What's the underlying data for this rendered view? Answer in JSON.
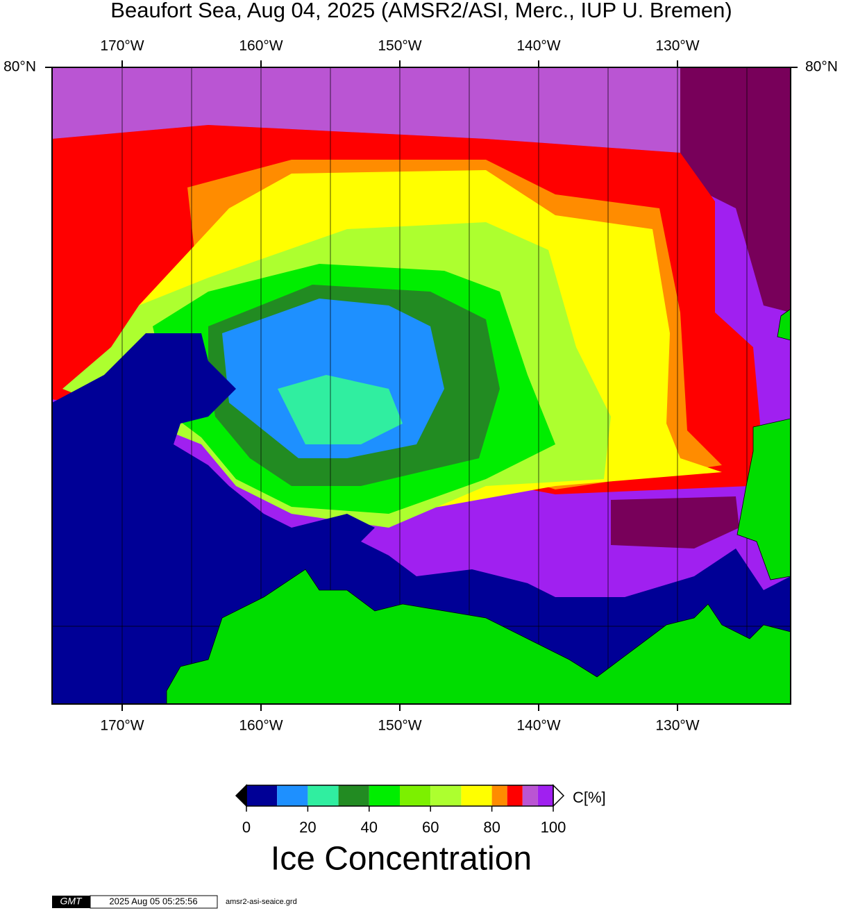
{
  "title": "Beaufort Sea, Aug 04, 2025 (AMSR2/ASI, Merc., IUP U. Bremen)",
  "map": {
    "lonlim": [
      -175.05,
      -121.85
    ],
    "latlim": [
      68,
      80
    ],
    "lon_ticks": [
      {
        "value": -170,
        "label": "170°W"
      },
      {
        "value": -160,
        "label": "160°W"
      },
      {
        "value": -150,
        "label": "150°W"
      },
      {
        "value": -140,
        "label": "140°W"
      },
      {
        "value": -130,
        "label": "130°W"
      }
    ],
    "lat_ticks": [
      {
        "value": 80,
        "label": "80°N"
      }
    ],
    "meridians": [
      -170,
      -165,
      -160,
      -155,
      -150,
      -145,
      -140,
      -135,
      -130,
      -125
    ],
    "parallels": [
      70
    ],
    "ocean_color": "#000096",
    "land_color": "#00dd00"
  },
  "colorbar": {
    "bounds": [
      0,
      10,
      20,
      30,
      40,
      50,
      60,
      70,
      80,
      85,
      90,
      95,
      100
    ],
    "colors": [
      "#000096",
      "#1e90ff",
      "#30eea0",
      "#228b22",
      "#00ee00",
      "#7cf000",
      "#adff2f",
      "#ffff00",
      "#ff8c00",
      "#ff0000",
      "#ba55d3",
      "#a020f0"
    ],
    "below_color": "#000000",
    "above_color": "#ffffff",
    "ticks": [
      0,
      20,
      40,
      60,
      80,
      100
    ],
    "unit_label": "C[%]",
    "label": "Ice Concentration"
  },
  "footer": {
    "logo": "GMT",
    "timestamp": "2025 Aug 05 05:25:56",
    "file": "amsr2-asi-seaice.grd"
  }
}
